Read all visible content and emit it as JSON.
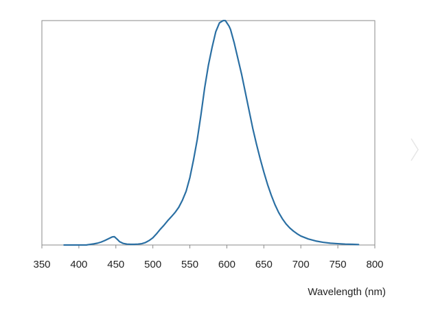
{
  "chart_data": {
    "type": "line",
    "title": "",
    "xlabel": "Wavelength (nm)",
    "ylabel": "",
    "xlim": [
      350,
      800
    ],
    "ylim": [
      0,
      1.0
    ],
    "xticks": [
      350,
      400,
      450,
      500,
      550,
      600,
      650,
      700,
      750,
      800
    ],
    "xtick_labels": [
      "350",
      "400",
      "450",
      "500",
      "550",
      "600",
      "650",
      "700",
      "750",
      "800"
    ],
    "grid": false,
    "legend": "none",
    "colors": {
      "line": "#2a6fa3",
      "frame": "#8a8a8a",
      "text": "#222222"
    },
    "series": [
      {
        "x": [
          380,
          400,
          410,
          420,
          425,
          430,
          435,
          440,
          445,
          448,
          452,
          455,
          460,
          465,
          470,
          475,
          480,
          485,
          490,
          495,
          500,
          505,
          510,
          515,
          520,
          525,
          530,
          535,
          540,
          545,
          550,
          555,
          560,
          565,
          570,
          575,
          580,
          585,
          590,
          595,
          598,
          600,
          603,
          605,
          610,
          615,
          620,
          625,
          630,
          635,
          640,
          645,
          650,
          655,
          660,
          665,
          670,
          675,
          680,
          685,
          690,
          695,
          700,
          710,
          720,
          730,
          740,
          750,
          760,
          770,
          778
        ],
        "y": [
          0.0,
          0.0,
          0.0,
          0.005,
          0.008,
          0.013,
          0.02,
          0.028,
          0.036,
          0.037,
          0.025,
          0.015,
          0.007,
          0.004,
          0.003,
          0.003,
          0.004,
          0.006,
          0.011,
          0.02,
          0.032,
          0.05,
          0.07,
          0.088,
          0.108,
          0.126,
          0.145,
          0.168,
          0.2,
          0.24,
          0.3,
          0.38,
          0.47,
          0.58,
          0.7,
          0.8,
          0.88,
          0.95,
          0.99,
          1.0,
          1.0,
          0.99,
          0.975,
          0.96,
          0.9,
          0.83,
          0.76,
          0.68,
          0.6,
          0.52,
          0.45,
          0.385,
          0.325,
          0.27,
          0.222,
          0.18,
          0.145,
          0.117,
          0.094,
          0.076,
          0.062,
          0.05,
          0.04,
          0.027,
          0.018,
          0.012,
          0.008,
          0.006,
          0.004,
          0.003,
          0.002
        ]
      }
    ]
  },
  "ui": {
    "chevron_icon": "chevron-right-icon"
  }
}
